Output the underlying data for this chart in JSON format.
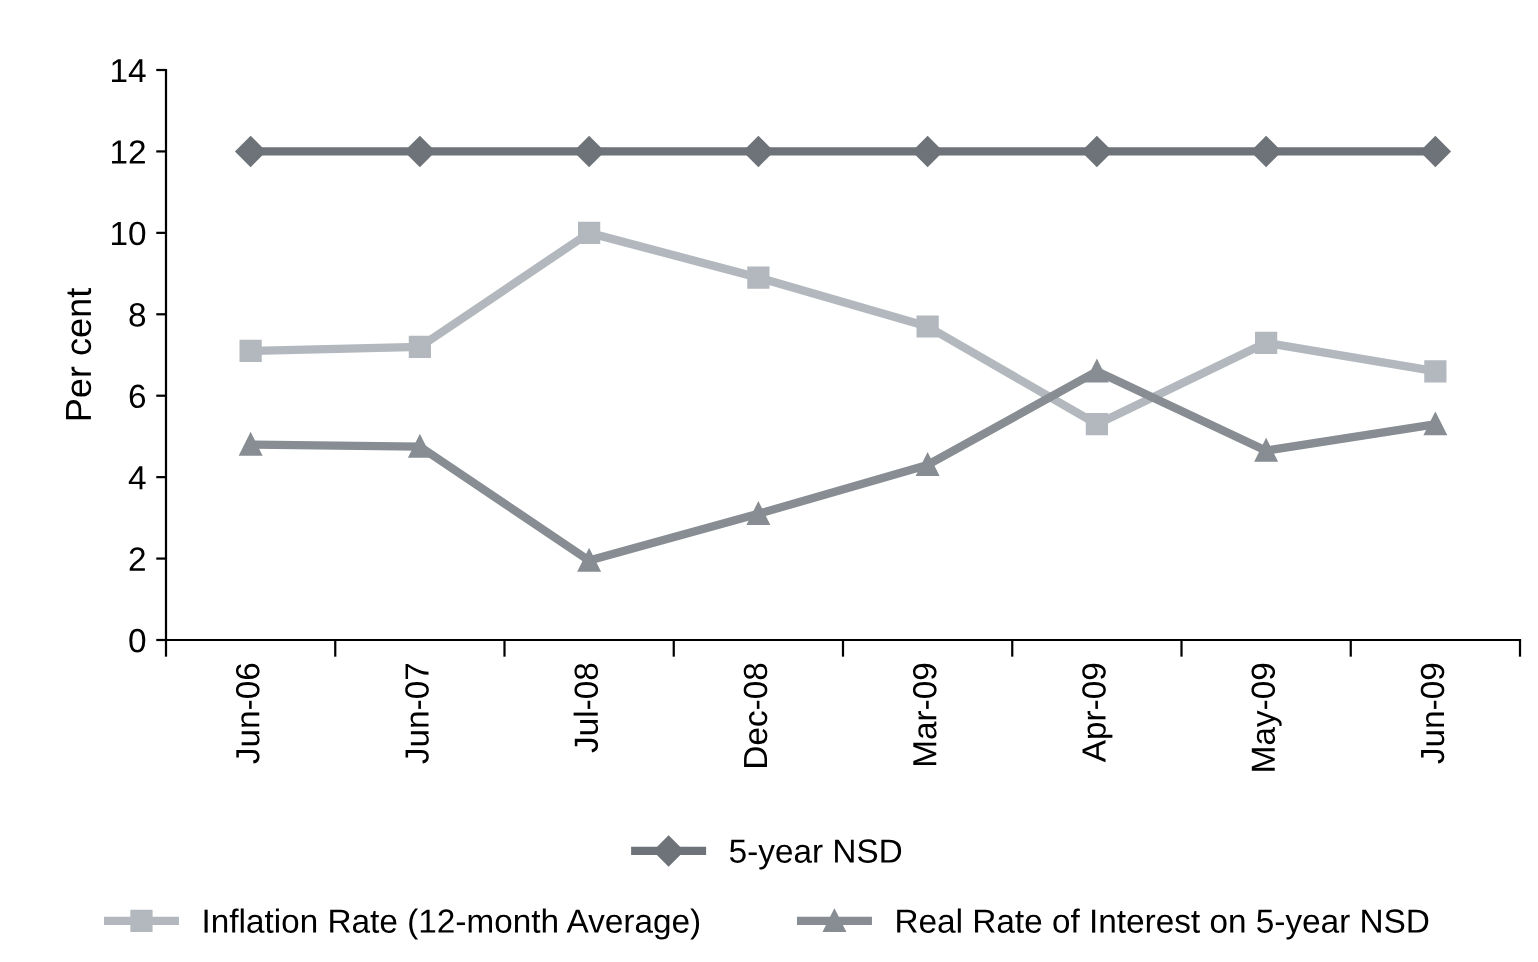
{
  "chart_data": {
    "type": "line",
    "ylabel": "Per cent",
    "categories": [
      "Jun-06",
      "Jun-07",
      "Jul-08",
      "Dec-08",
      "Mar-09",
      "Apr-09",
      "May-09",
      "Jun-09"
    ],
    "series": [
      {
        "name": "5-year NSD",
        "color": "#6d7378",
        "marker": "diamond",
        "values": [
          12,
          12,
          12,
          12,
          12,
          12,
          12,
          12
        ]
      },
      {
        "name": "Inflation Rate (12-month Average)",
        "color": "#b2b8bd",
        "marker": "square",
        "values": [
          7.1,
          7.2,
          10,
          8.9,
          7.7,
          5.3,
          7.3,
          6.6
        ]
      },
      {
        "name": "Real Rate of Interest on 5-year NSD",
        "color": "#878d92",
        "marker": "triangle",
        "values": [
          4.8,
          4.75,
          1.95,
          3.1,
          4.3,
          6.6,
          4.65,
          5.3
        ]
      }
    ],
    "ylim": [
      0,
      14
    ],
    "yticks": [
      0,
      2,
      4,
      6,
      8,
      10,
      12,
      14
    ],
    "grid": false,
    "legend": "bottom",
    "line_style": "solid"
  }
}
